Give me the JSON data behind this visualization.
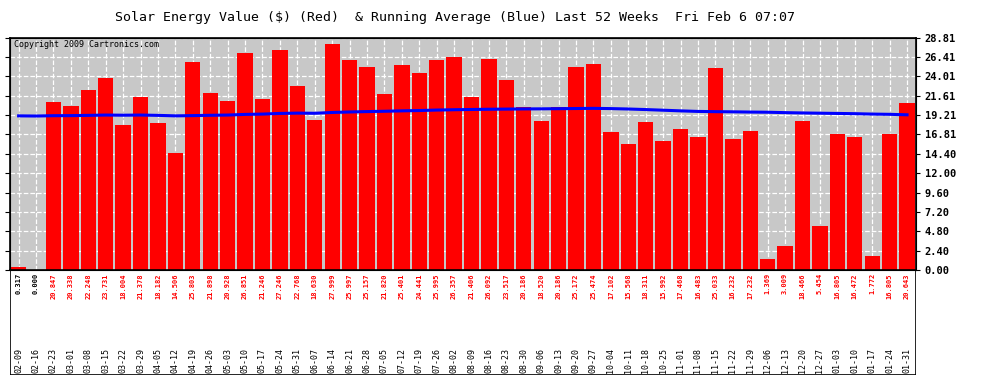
{
  "title": "Solar Energy Value ($) (Red)  & Running Average (Blue) Last 52 Weeks  Fri Feb 6 07:07",
  "copyright": "Copyright 2009 Cartronics.com",
  "bar_color": "#FF0000",
  "line_color": "#0000FF",
  "background_color": "#C8C8C8",
  "ylim": [
    0,
    28.81
  ],
  "yticks_right": [
    0.0,
    2.4,
    4.8,
    7.2,
    9.6,
    12.0,
    14.4,
    16.81,
    19.21,
    21.61,
    24.01,
    26.41,
    28.81
  ],
  "categories": [
    "02-09",
    "02-16",
    "02-23",
    "03-01",
    "03-08",
    "03-15",
    "03-22",
    "03-29",
    "04-05",
    "04-12",
    "04-19",
    "04-26",
    "05-03",
    "05-10",
    "05-17",
    "05-24",
    "05-31",
    "06-07",
    "06-14",
    "06-21",
    "06-28",
    "07-05",
    "07-12",
    "07-19",
    "07-26",
    "08-02",
    "08-09",
    "08-16",
    "08-23",
    "08-30",
    "09-06",
    "09-13",
    "09-20",
    "09-27",
    "10-04",
    "10-11",
    "10-18",
    "10-25",
    "11-01",
    "11-08",
    "11-15",
    "11-22",
    "11-29",
    "12-06",
    "12-13",
    "12-20",
    "12-27",
    "01-03",
    "01-10",
    "01-17",
    "01-24",
    "01-31"
  ],
  "values": [
    0.317,
    0.0,
    20.847,
    20.338,
    22.248,
    23.731,
    18.004,
    21.378,
    18.182,
    14.506,
    25.803,
    21.898,
    20.928,
    26.851,
    21.246,
    27.246,
    22.768,
    18.63,
    27.999,
    25.997,
    25.157,
    21.82,
    25.401,
    24.441,
    25.995,
    26.357,
    21.406,
    26.092,
    23.517,
    20.186,
    18.52,
    20.186,
    25.172,
    25.474,
    17.102,
    15.568,
    18.311,
    15.992,
    17.468,
    16.483,
    25.033,
    16.232,
    17.232,
    1.369,
    3.009,
    18.466,
    5.454,
    16.805,
    16.472,
    1.772,
    16.805,
    20.643
  ],
  "running_avg": [
    19.1,
    19.08,
    19.12,
    19.13,
    19.16,
    19.2,
    19.18,
    19.2,
    19.16,
    19.1,
    19.13,
    19.17,
    19.2,
    19.28,
    19.32,
    19.4,
    19.44,
    19.42,
    19.52,
    19.58,
    19.63,
    19.67,
    19.72,
    19.76,
    19.82,
    19.86,
    19.89,
    19.92,
    19.94,
    19.96,
    19.97,
    19.99,
    20.01,
    20.03,
    20.0,
    19.95,
    19.88,
    19.8,
    19.72,
    19.65,
    19.62,
    19.6,
    19.57,
    19.55,
    19.5,
    19.46,
    19.43,
    19.4,
    19.37,
    19.32,
    19.29,
    19.23
  ]
}
